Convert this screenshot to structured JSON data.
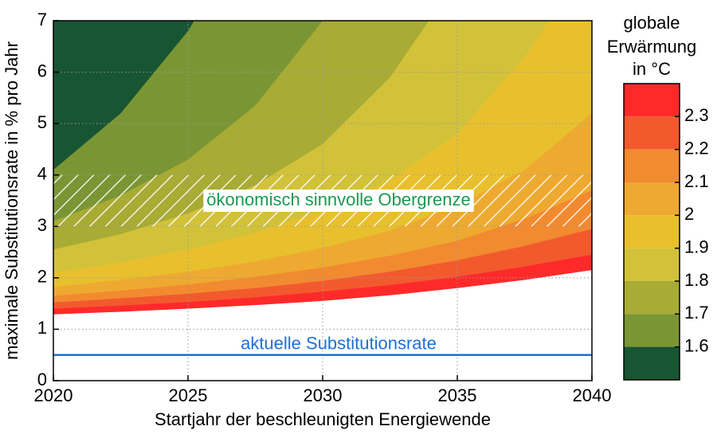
{
  "chart_data": {
    "type": "contour",
    "xlabel": "Startjahr der beschleunigten Energiewende",
    "ylabel": "maximale Substitutionsrate in % pro Jahr",
    "xlim": [
      2020,
      2040
    ],
    "xticks": [
      2020,
      2025,
      2030,
      2035,
      2040
    ],
    "ylim": [
      0,
      7
    ],
    "yticks": [
      0,
      1,
      2,
      3,
      4,
      5,
      6,
      7
    ],
    "grid": true,
    "x": [
      2020,
      2022.5,
      2025,
      2027.5,
      2030,
      2032.5,
      2035,
      2037.5,
      2040
    ],
    "contours": [
      {
        "level": 2.4,
        "color": "#fe2a2a",
        "values": [
          1.29,
          1.34,
          1.4,
          1.47,
          1.55,
          1.66,
          1.8,
          1.96,
          2.15
        ]
      },
      {
        "level": 2.3,
        "color": "#f25a2e",
        "values": [
          1.4,
          1.46,
          1.53,
          1.62,
          1.73,
          1.86,
          2.02,
          2.22,
          2.45
        ]
      },
      {
        "level": 2.2,
        "color": "#f28a30",
        "values": [
          1.52,
          1.6,
          1.69,
          1.8,
          1.94,
          2.12,
          2.34,
          2.62,
          2.95
        ]
      },
      {
        "level": 2.1,
        "color": "#eeaa30",
        "values": [
          1.65,
          1.75,
          1.87,
          2.02,
          2.2,
          2.43,
          2.72,
          3.15,
          3.7
        ]
      },
      {
        "level": 2.0,
        "color": "#e8c02e",
        "values": [
          1.82,
          1.96,
          2.12,
          2.32,
          2.58,
          2.92,
          3.4,
          4.1,
          5.2
        ]
      },
      {
        "level": 1.9,
        "color": "#d2c23a",
        "values": [
          2.1,
          2.3,
          2.55,
          2.88,
          3.3,
          3.9,
          4.8,
          6.3,
          8.2
        ]
      },
      {
        "level": 1.8,
        "color": "#a8ab34",
        "values": [
          2.55,
          2.85,
          3.25,
          3.8,
          4.6,
          5.9,
          7.8,
          10.0,
          12.0
        ]
      },
      {
        "level": 1.7,
        "color": "#7a9634",
        "values": [
          3.1,
          3.6,
          4.3,
          5.35,
          7.0,
          9.2,
          12.0,
          15.0,
          18.0
        ]
      },
      {
        "level": 1.6,
        "color": "#4e7a30",
        "values": [
          4.1,
          5.2,
          6.8,
          9.0,
          12.0,
          15.0,
          18.0,
          21.0,
          24.0
        ]
      }
    ],
    "background_color": "#185533",
    "band": {
      "ylim": [
        3,
        4
      ],
      "label": "ökonomisch sinnvolle Obergrenze",
      "color": "#1a9a50"
    },
    "reference_line": {
      "value": 0.5,
      "label": "aktuelle Substitutionsrate",
      "color": "#1f6fd6"
    },
    "colorbar": {
      "title": [
        "globale",
        "Erwärmung",
        "in °C"
      ],
      "lim": [
        1.5,
        2.4
      ],
      "ticks": [
        1.6,
        1.7,
        1.8,
        1.9,
        2.0,
        2.1,
        2.2,
        2.3
      ]
    }
  }
}
